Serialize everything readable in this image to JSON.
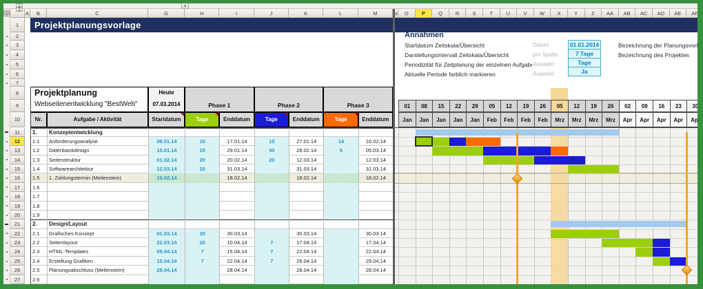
{
  "sheet": {
    "column_letters": [
      "A",
      "B",
      "C",
      "G",
      "H",
      "I",
      "J",
      "K",
      "L",
      "M",
      "N",
      "O",
      "P",
      "Q",
      "R",
      "S",
      "T",
      "U",
      "V",
      "W",
      "X",
      "Y",
      "Z",
      "AA",
      "AB",
      "AC",
      "AD",
      "AE",
      "AF"
    ],
    "selected_column": "P",
    "selected_column_index": 12,
    "row_count": 27,
    "selected_row": 12,
    "outline_column_levels": [
      "1",
      "2"
    ],
    "outline_row_levels": [
      "1",
      "2"
    ],
    "expand_button": "+",
    "outline_dot_rows": [
      2,
      3,
      4,
      5,
      6,
      7,
      12,
      13,
      14,
      15,
      16,
      17,
      18,
      19,
      20,
      22,
      23,
      24,
      25,
      26,
      27
    ]
  },
  "title_bar": {
    "text": "Projektplanungsvorlage"
  },
  "assumptions": {
    "heading": "Annahmen",
    "rows": [
      {
        "label": "Startdatum Zeitskala/Übersicht",
        "hint": "Datum",
        "value": "01.01.2014"
      },
      {
        "label": "Darstellungsintervall Zeitskala/Übersicht",
        "hint": "pro Spalte",
        "value": "7 Tage"
      },
      {
        "label": "Periodizität für Zeitplanung der einzelnen Aufgaben",
        "hint": "Auswahl",
        "value": "Tage"
      },
      {
        "label": "Aktuelle Periode farblich markieren",
        "hint": "Auswahl",
        "value": "Ja"
      }
    ],
    "side_labels": [
      "Bezeichnung der Planungsvorlage",
      "Bezeichnung des Projektes"
    ]
  },
  "plan": {
    "title": "Projektplanung",
    "subtitle": "Webseitenentwicklung \"BestWeb\"",
    "today_label": "Heute",
    "today_date": "07.03.2014",
    "phases": [
      "Phase 1",
      "Phase 2",
      "Phase 3"
    ],
    "columns": {
      "nr": "Nr.",
      "task": "Aufgabe / Aktivität",
      "start": "Startdatum",
      "tage": "Tage",
      "end": "Enddatum"
    },
    "rows": [
      {
        "nr": "1.",
        "task": "Konzeptentwicklung",
        "section": true
      },
      {
        "nr": "1.1",
        "task": "Anforderungsanalyse",
        "start": "08.01.14",
        "t1": "10",
        "e1": "17.01.14",
        "t2": "10",
        "e2": "27.01.14",
        "t3": "14",
        "e3": "10.02.14"
      },
      {
        "nr": "1.2",
        "task": "Datenbankdesign",
        "start": "15.01.14",
        "t1": "15",
        "e1": "29.01.14",
        "t2": "30",
        "e2": "28.02.14",
        "t3": "5",
        "e3": "05.03.14"
      },
      {
        "nr": "1.3",
        "task": "Seitenstruktur",
        "start": "01.02.14",
        "t1": "20",
        "e1": "20.02.14",
        "t2": "20",
        "e2": "12.03.14",
        "t3": "-",
        "e3": "12.03.14"
      },
      {
        "nr": "1.4",
        "task": "Softwarearchitektur",
        "start": "12.03.14",
        "t1": "20",
        "e1": "31.03.14",
        "t2": "-",
        "e2": "31.03.14",
        "t3": "-",
        "e3": "31.03.14"
      },
      {
        "nr": "1.5",
        "task": "1. Zahlungstermin  (Meilenstein)",
        "start": "19.02.14",
        "t1": "-",
        "e1": "18.02.14",
        "t2": "-",
        "e2": "18.02.14",
        "t3": "-",
        "e3": "18.02.14",
        "milestone": true
      },
      {
        "nr": "1.6"
      },
      {
        "nr": "1.7"
      },
      {
        "nr": "1.8"
      },
      {
        "nr": "1.9"
      },
      {
        "nr": "2.",
        "task": "Design/Layout",
        "section": true
      },
      {
        "nr": "2.1",
        "task": "Grafisches Konzept",
        "start": "01.03.14",
        "t1": "30",
        "e1": "30.03.14",
        "t2": "-",
        "e2": "30.03.14",
        "t3": "-",
        "e3": "30.03.14"
      },
      {
        "nr": "2.2",
        "task": "Seitenlayout",
        "start": "22.03.14",
        "t1": "20",
        "e1": "10.04.14",
        "t2": "7",
        "e2": "17.04.14",
        "t3": "-",
        "e3": "17.04.14"
      },
      {
        "nr": "2.3",
        "task": "HTML-Templates",
        "start": "09.04.14",
        "t1": "7",
        "e1": "15.04.14",
        "t2": "7",
        "e2": "22.04.14",
        "t3": "-",
        "e3": "22.04.14"
      },
      {
        "nr": "2.4",
        "task": "Erstellung Grafiken",
        "start": "15.04.14",
        "t1": "7",
        "e1": "22.04.14",
        "t2": "7",
        "e2": "29.04.14",
        "t3": "-",
        "e3": "29.04.14"
      },
      {
        "nr": "2.5",
        "task": "Planungsabschluss (Meilenstein)",
        "start": "29.04.14",
        "t1": "",
        "e1": "28.04.14",
        "t2": "",
        "e2": "28.04.14",
        "t3": "",
        "e3": "28.04.14"
      },
      {
        "nr": "2.6"
      }
    ]
  },
  "gantt": {
    "weeks": [
      "01",
      "08",
      "15",
      "22",
      "29",
      "05",
      "12",
      "19",
      "26",
      "05",
      "12",
      "19",
      "26",
      "02",
      "09",
      "16",
      "23",
      "30"
    ],
    "months": [
      "Jan",
      "Jan",
      "Jan",
      "Jan",
      "Jan",
      "Feb",
      "Feb",
      "Feb",
      "Feb",
      "Mrz",
      "Mrz",
      "Mrz",
      "Mrz",
      "Apr",
      "Apr",
      "Apr",
      "Apr",
      "Apr"
    ],
    "current_week_index": 9,
    "gray_until_index": 12,
    "bars": [
      {
        "row": 11,
        "col": 2,
        "span": 12,
        "color": "summary"
      },
      {
        "row": 12,
        "col": 2,
        "span": 2,
        "color": "green"
      },
      {
        "row": 12,
        "col": 4,
        "span": 1,
        "color": "blue"
      },
      {
        "row": 12,
        "col": 5,
        "span": 2,
        "color": "orange"
      },
      {
        "row": 13,
        "col": 3,
        "span": 3,
        "color": "green"
      },
      {
        "row": 13,
        "col": 6,
        "span": 4,
        "color": "blue"
      },
      {
        "row": 13,
        "col": 10,
        "span": 1,
        "color": "orange"
      },
      {
        "row": 14,
        "col": 6,
        "span": 3,
        "color": "green"
      },
      {
        "row": 14,
        "col": 9,
        "span": 3,
        "color": "blue"
      },
      {
        "row": 15,
        "col": 11,
        "span": 3,
        "color": "green"
      },
      {
        "row": 21,
        "col": 10,
        "span": 8,
        "color": "summary"
      },
      {
        "row": 22,
        "col": 10,
        "span": 4,
        "color": "green"
      },
      {
        "row": 23,
        "col": 13,
        "span": 3,
        "color": "green"
      },
      {
        "row": 23,
        "col": 16,
        "span": 1,
        "color": "blue"
      },
      {
        "row": 24,
        "col": 15,
        "span": 1,
        "color": "green"
      },
      {
        "row": 24,
        "col": 16,
        "span": 1,
        "color": "blue"
      },
      {
        "row": 25,
        "col": 16,
        "span": 1,
        "color": "green"
      },
      {
        "row": 25,
        "col": 17,
        "span": 1,
        "color": "blue"
      }
    ],
    "milestones": [
      {
        "row": 16,
        "after_col": 7
      },
      {
        "row": 26,
        "after_col": 17
      }
    ]
  },
  "colors": {
    "phase1_green": "#9DCE0C",
    "phase2_blue": "#1B1BD8",
    "phase3_orange": "#FF6A00",
    "summary_blue": "#A3C9EE",
    "current_week_tan": "#F6D795",
    "milestone_orange": "#F4A52F",
    "input_cyan": "#D9F3F5",
    "milestone_green_cell": "#C9E8CF",
    "milestone_row_beige": "#EFEDDE",
    "title_navy": "#1F3060",
    "header_highlight_yellow": "#FFE545",
    "value_text_blue": "#2596CE",
    "frame_green": "#37913F"
  }
}
